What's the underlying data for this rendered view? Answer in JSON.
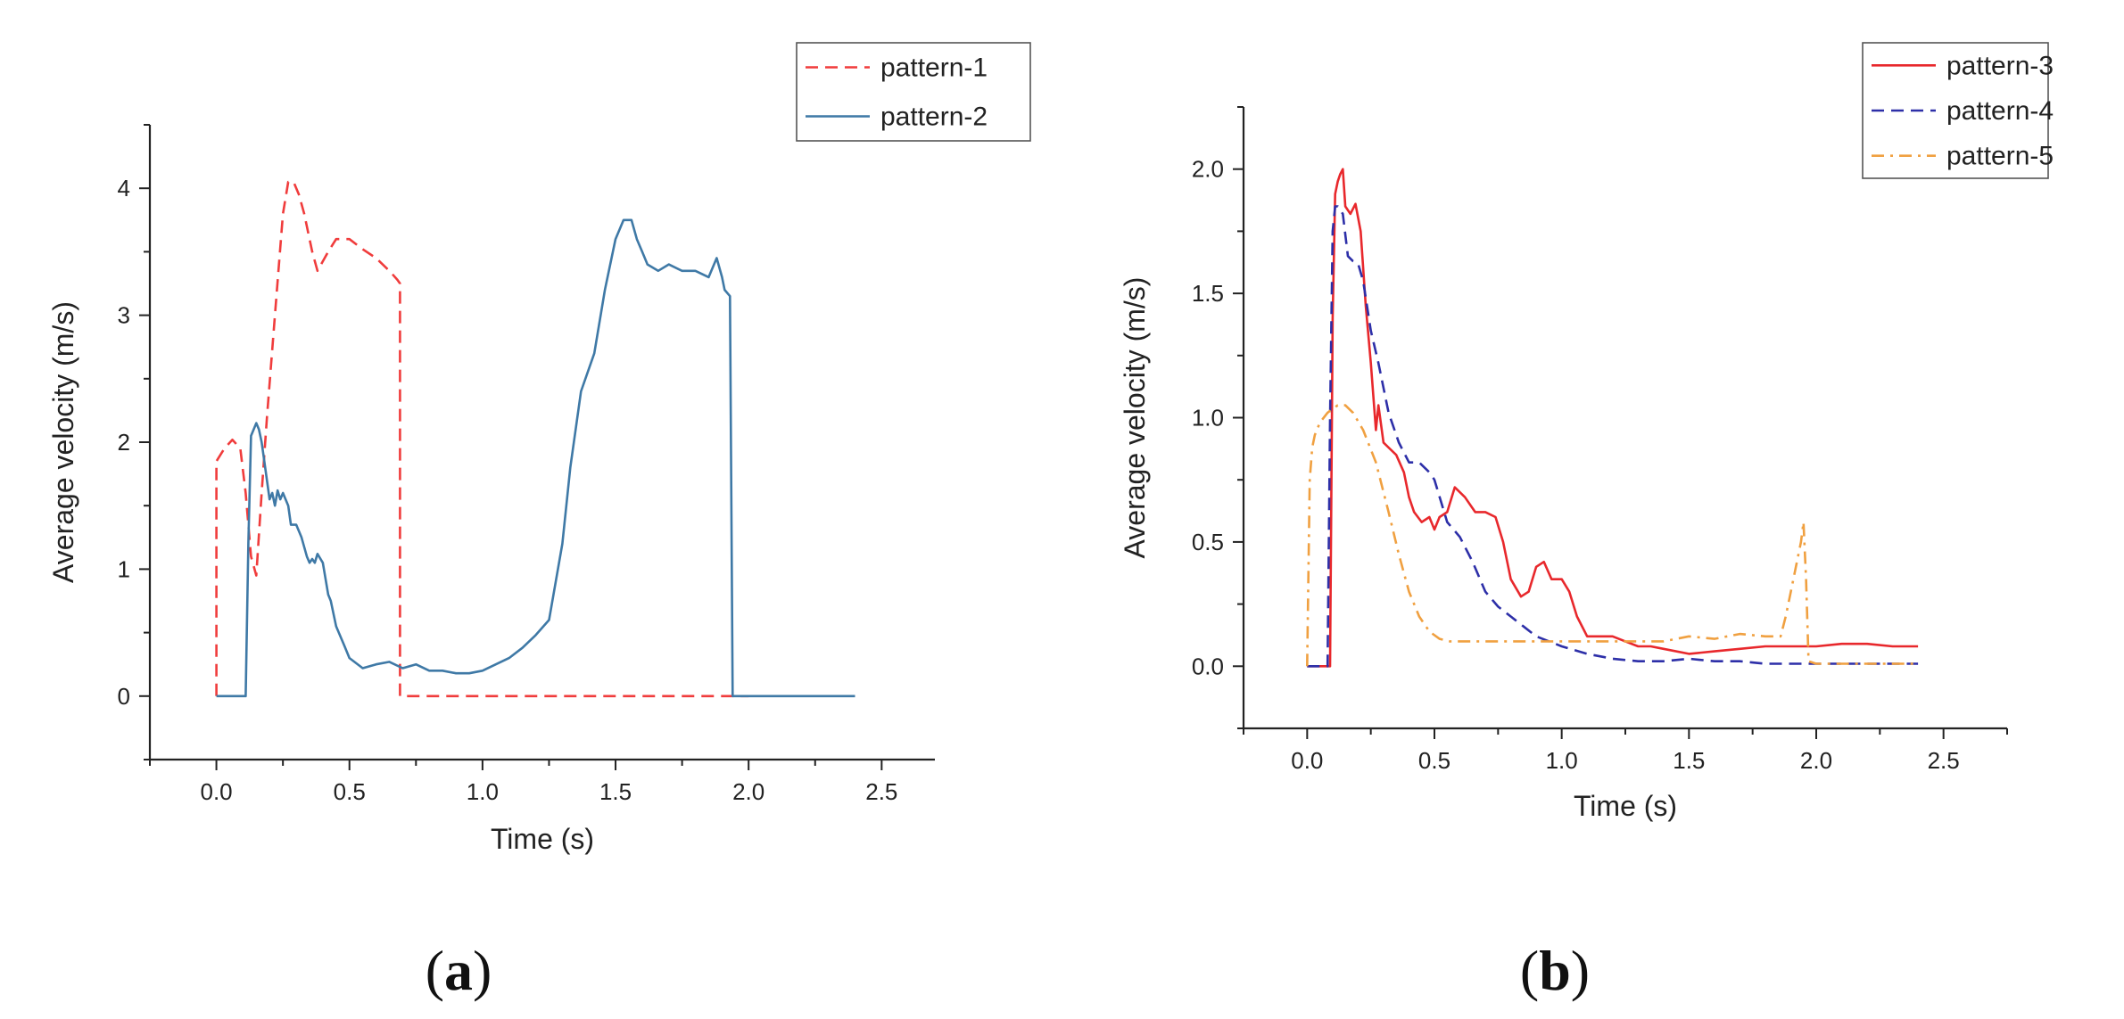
{
  "colors": {
    "pattern-1": "#f03c3c",
    "pattern-2": "#3f79a6",
    "pattern-3": "#e8282c",
    "pattern-4": "#2d2fa8",
    "pattern-5": "#f0a040"
  },
  "chart_data": [
    {
      "id": "a",
      "type": "line",
      "panel_label": "a",
      "xlabel": "Time (s)",
      "ylabel": "Average velocity (m/s)",
      "xlim": [
        -0.25,
        2.7
      ],
      "ylim": [
        -0.5,
        4.5
      ],
      "xticks": [
        0.0,
        0.5,
        1.0,
        1.5,
        2.0,
        2.5
      ],
      "xtick_labels": [
        "0.0",
        "0.5",
        "1.0",
        "1.5",
        "2.0",
        "2.5"
      ],
      "yticks": [
        0,
        1,
        2,
        3,
        4
      ],
      "ytick_labels": [
        "0",
        "1",
        "2",
        "3",
        "4"
      ],
      "legend_position": "top-right",
      "series": [
        {
          "name": "pattern-1",
          "style": "dashed",
          "x": [
            0.0,
            0.0,
            0.03,
            0.06,
            0.09,
            0.11,
            0.13,
            0.15,
            0.17,
            0.19,
            0.22,
            0.25,
            0.27,
            0.29,
            0.31,
            0.33,
            0.36,
            0.38,
            0.42,
            0.45,
            0.5,
            0.55,
            0.6,
            0.65,
            0.68,
            0.69,
            0.69,
            0.7,
            2.0
          ],
          "y": [
            0.0,
            1.85,
            1.95,
            2.02,
            1.95,
            1.6,
            1.1,
            0.95,
            1.6,
            2.2,
            3.0,
            3.8,
            4.05,
            4.05,
            3.95,
            3.8,
            3.5,
            3.35,
            3.5,
            3.6,
            3.6,
            3.52,
            3.45,
            3.35,
            3.28,
            3.25,
            0.0,
            0.0,
            0.0
          ]
        },
        {
          "name": "pattern-2",
          "style": "solid",
          "x": [
            0.0,
            0.11,
            0.12,
            0.13,
            0.15,
            0.16,
            0.17,
            0.18,
            0.2,
            0.21,
            0.22,
            0.23,
            0.24,
            0.25,
            0.27,
            0.28,
            0.3,
            0.32,
            0.34,
            0.35,
            0.36,
            0.37,
            0.38,
            0.4,
            0.42,
            0.43,
            0.45,
            0.48,
            0.5,
            0.55,
            0.6,
            0.65,
            0.7,
            0.75,
            0.8,
            0.85,
            0.9,
            0.95,
            1.0,
            1.05,
            1.1,
            1.15,
            1.2,
            1.25,
            1.3,
            1.33,
            1.37,
            1.42,
            1.46,
            1.5,
            1.53,
            1.56,
            1.58,
            1.6,
            1.62,
            1.66,
            1.7,
            1.75,
            1.8,
            1.85,
            1.87,
            1.88,
            1.9,
            1.91,
            1.93,
            1.94,
            1.95,
            2.0,
            2.4
          ],
          "y": [
            0.0,
            0.0,
            1.2,
            2.05,
            2.15,
            2.1,
            2.0,
            1.85,
            1.55,
            1.6,
            1.5,
            1.62,
            1.55,
            1.6,
            1.5,
            1.35,
            1.35,
            1.25,
            1.1,
            1.05,
            1.08,
            1.05,
            1.12,
            1.05,
            0.8,
            0.75,
            0.55,
            0.4,
            0.3,
            0.22,
            0.25,
            0.27,
            0.22,
            0.25,
            0.2,
            0.2,
            0.18,
            0.18,
            0.2,
            0.25,
            0.3,
            0.38,
            0.48,
            0.6,
            1.2,
            1.8,
            2.4,
            2.7,
            3.2,
            3.6,
            3.75,
            3.75,
            3.6,
            3.5,
            3.4,
            3.35,
            3.4,
            3.35,
            3.35,
            3.3,
            3.4,
            3.45,
            3.3,
            3.2,
            3.15,
            0.0,
            0.0,
            0.0,
            0.0
          ]
        }
      ]
    },
    {
      "id": "b",
      "type": "line",
      "panel_label": "b",
      "xlabel": "Time (s)",
      "ylabel": "Average velocity (m/s)",
      "xlim": [
        -0.25,
        2.75
      ],
      "ylim": [
        -0.25,
        2.25
      ],
      "xticks": [
        0.0,
        0.5,
        1.0,
        1.5,
        2.0,
        2.5
      ],
      "xtick_labels": [
        "0.0",
        "0.5",
        "1.0",
        "1.5",
        "2.0",
        "2.5"
      ],
      "yticks": [
        0.0,
        0.5,
        1.0,
        1.5,
        2.0
      ],
      "ytick_labels": [
        "0.0",
        "0.5",
        "1.0",
        "1.5",
        "2.0"
      ],
      "legend_position": "top-right",
      "series": [
        {
          "name": "pattern-3",
          "style": "solid",
          "x": [
            0.0,
            0.09,
            0.1,
            0.11,
            0.12,
            0.13,
            0.14,
            0.15,
            0.17,
            0.19,
            0.21,
            0.23,
            0.25,
            0.27,
            0.28,
            0.3,
            0.32,
            0.35,
            0.38,
            0.4,
            0.42,
            0.45,
            0.48,
            0.5,
            0.52,
            0.55,
            0.58,
            0.62,
            0.66,
            0.7,
            0.74,
            0.77,
            0.8,
            0.84,
            0.87,
            0.9,
            0.93,
            0.96,
            1.0,
            1.03,
            1.06,
            1.1,
            1.15,
            1.2,
            1.25,
            1.3,
            1.35,
            1.4,
            1.5,
            1.6,
            1.7,
            1.8,
            1.9,
            2.0,
            2.1,
            2.2,
            2.3,
            2.4
          ],
          "y": [
            0.0,
            0.0,
            1.4,
            1.9,
            1.95,
            1.98,
            2.0,
            1.85,
            1.82,
            1.86,
            1.75,
            1.45,
            1.22,
            0.95,
            1.05,
            0.9,
            0.88,
            0.85,
            0.78,
            0.68,
            0.62,
            0.58,
            0.6,
            0.55,
            0.6,
            0.62,
            0.72,
            0.68,
            0.62,
            0.62,
            0.6,
            0.5,
            0.35,
            0.28,
            0.3,
            0.4,
            0.42,
            0.35,
            0.35,
            0.3,
            0.2,
            0.12,
            0.12,
            0.12,
            0.1,
            0.08,
            0.08,
            0.07,
            0.05,
            0.06,
            0.07,
            0.08,
            0.08,
            0.08,
            0.09,
            0.09,
            0.08,
            0.08
          ]
        },
        {
          "name": "pattern-4",
          "style": "dashed",
          "x": [
            0.0,
            0.08,
            0.09,
            0.1,
            0.11,
            0.12,
            0.14,
            0.16,
            0.18,
            0.2,
            0.22,
            0.25,
            0.28,
            0.32,
            0.36,
            0.4,
            0.44,
            0.48,
            0.5,
            0.55,
            0.6,
            0.65,
            0.7,
            0.75,
            0.8,
            0.85,
            0.9,
            1.0,
            1.1,
            1.2,
            1.3,
            1.4,
            1.5,
            1.6,
            1.7,
            1.8,
            2.0,
            2.2,
            2.4
          ],
          "y": [
            0.0,
            0.0,
            1.0,
            1.75,
            1.85,
            1.85,
            1.82,
            1.65,
            1.63,
            1.62,
            1.55,
            1.35,
            1.22,
            1.02,
            0.9,
            0.82,
            0.82,
            0.78,
            0.75,
            0.58,
            0.52,
            0.42,
            0.3,
            0.24,
            0.2,
            0.16,
            0.12,
            0.08,
            0.05,
            0.03,
            0.02,
            0.02,
            0.03,
            0.02,
            0.02,
            0.01,
            0.01,
            0.01,
            0.01
          ]
        },
        {
          "name": "pattern-5",
          "style": "dashdot",
          "x": [
            0.0,
            0.01,
            0.02,
            0.03,
            0.05,
            0.08,
            0.12,
            0.15,
            0.18,
            0.22,
            0.27,
            0.32,
            0.36,
            0.4,
            0.44,
            0.48,
            0.52,
            0.56,
            0.6,
            0.7,
            0.8,
            0.9,
            1.0,
            1.1,
            1.2,
            1.3,
            1.4,
            1.5,
            1.6,
            1.7,
            1.8,
            1.86,
            1.88,
            1.9,
            1.92,
            1.94,
            1.95,
            1.96,
            1.97,
            2.0,
            2.2,
            2.4
          ],
          "y": [
            0.0,
            0.75,
            0.88,
            0.93,
            0.98,
            1.02,
            1.05,
            1.05,
            1.02,
            0.95,
            0.82,
            0.62,
            0.45,
            0.3,
            0.2,
            0.14,
            0.11,
            0.1,
            0.1,
            0.1,
            0.1,
            0.1,
            0.1,
            0.1,
            0.1,
            0.1,
            0.1,
            0.12,
            0.11,
            0.13,
            0.12,
            0.12,
            0.2,
            0.3,
            0.4,
            0.5,
            0.58,
            0.35,
            0.02,
            0.01,
            0.01,
            0.01
          ]
        }
      ]
    }
  ]
}
